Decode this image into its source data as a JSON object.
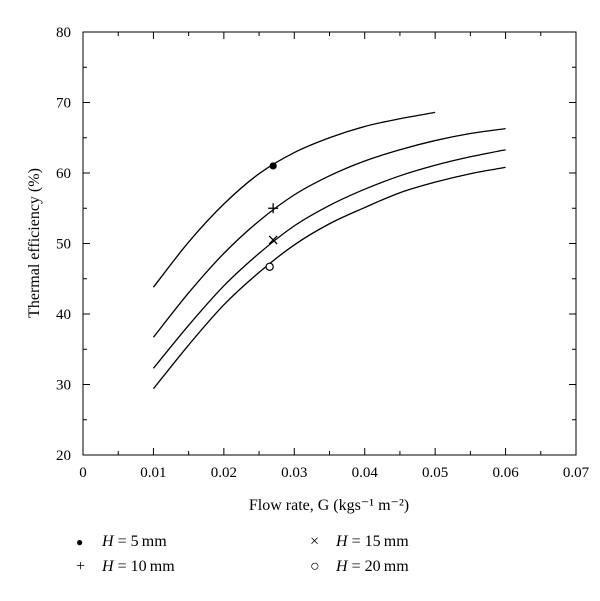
{
  "chart_data": {
    "type": "line",
    "xlabel": "Flow rate, G (kgs⁻¹ m⁻²)",
    "ylabel": "Thermal efficiency (%)",
    "xlim": [
      0,
      0.07
    ],
    "ylim": [
      20,
      80
    ],
    "x_ticks": [
      "0",
      "0.01",
      "0.02",
      "0.03",
      "0.04",
      "0.05",
      "0.06",
      "0.07"
    ],
    "y_ticks": [
      "20",
      "30",
      "40",
      "50",
      "60",
      "70",
      "80"
    ],
    "grid": false,
    "series": [
      {
        "name": "H = 5 mm",
        "marker": "filled-circle",
        "x": [
          0.01,
          0.015,
          0.02,
          0.025,
          0.03,
          0.035,
          0.04,
          0.045,
          0.05
        ],
        "y": [
          43.8,
          50.2,
          55.6,
          59.9,
          62.9,
          65.0,
          66.6,
          67.7,
          68.6
        ],
        "marker_point": [
          0.027,
          61.0
        ]
      },
      {
        "name": "H = 10 mm",
        "marker": "plus",
        "x": [
          0.01,
          0.015,
          0.02,
          0.025,
          0.03,
          0.035,
          0.04,
          0.045,
          0.05,
          0.055,
          0.06
        ],
        "y": [
          36.7,
          43.0,
          48.6,
          53.2,
          56.9,
          59.6,
          61.7,
          63.3,
          64.6,
          65.6,
          66.3
        ],
        "marker_point": [
          0.027,
          55.0
        ]
      },
      {
        "name": "H = 15 mm",
        "marker": "cross",
        "x": [
          0.01,
          0.015,
          0.02,
          0.025,
          0.03,
          0.035,
          0.04,
          0.045,
          0.05,
          0.055,
          0.06
        ],
        "y": [
          32.3,
          38.4,
          44.0,
          48.6,
          52.5,
          55.4,
          57.7,
          59.6,
          61.1,
          62.3,
          63.3
        ],
        "marker_point": [
          0.027,
          50.5
        ]
      },
      {
        "name": "H = 20 mm",
        "marker": "open-circle",
        "x": [
          0.01,
          0.015,
          0.02,
          0.025,
          0.03,
          0.035,
          0.04,
          0.045,
          0.05,
          0.055,
          0.06
        ],
        "y": [
          29.4,
          35.6,
          41.3,
          45.9,
          49.8,
          52.8,
          55.1,
          57.2,
          58.7,
          59.9,
          60.8
        ],
        "marker_point": [
          0.0265,
          46.7
        ]
      }
    ]
  },
  "legend": {
    "items": [
      {
        "symbol": "●",
        "prefix": "H",
        "rest": " = 5 mm"
      },
      {
        "symbol": "+",
        "prefix": "H",
        "rest": " = 10 mm"
      },
      {
        "symbol": "×",
        "prefix": "H",
        "rest": " = 15 mm"
      },
      {
        "symbol": "○",
        "prefix": "H",
        "rest": " = 20 mm"
      }
    ]
  },
  "colors": {
    "line": "#000000",
    "axis": "#000000",
    "background": "#ffffff"
  }
}
